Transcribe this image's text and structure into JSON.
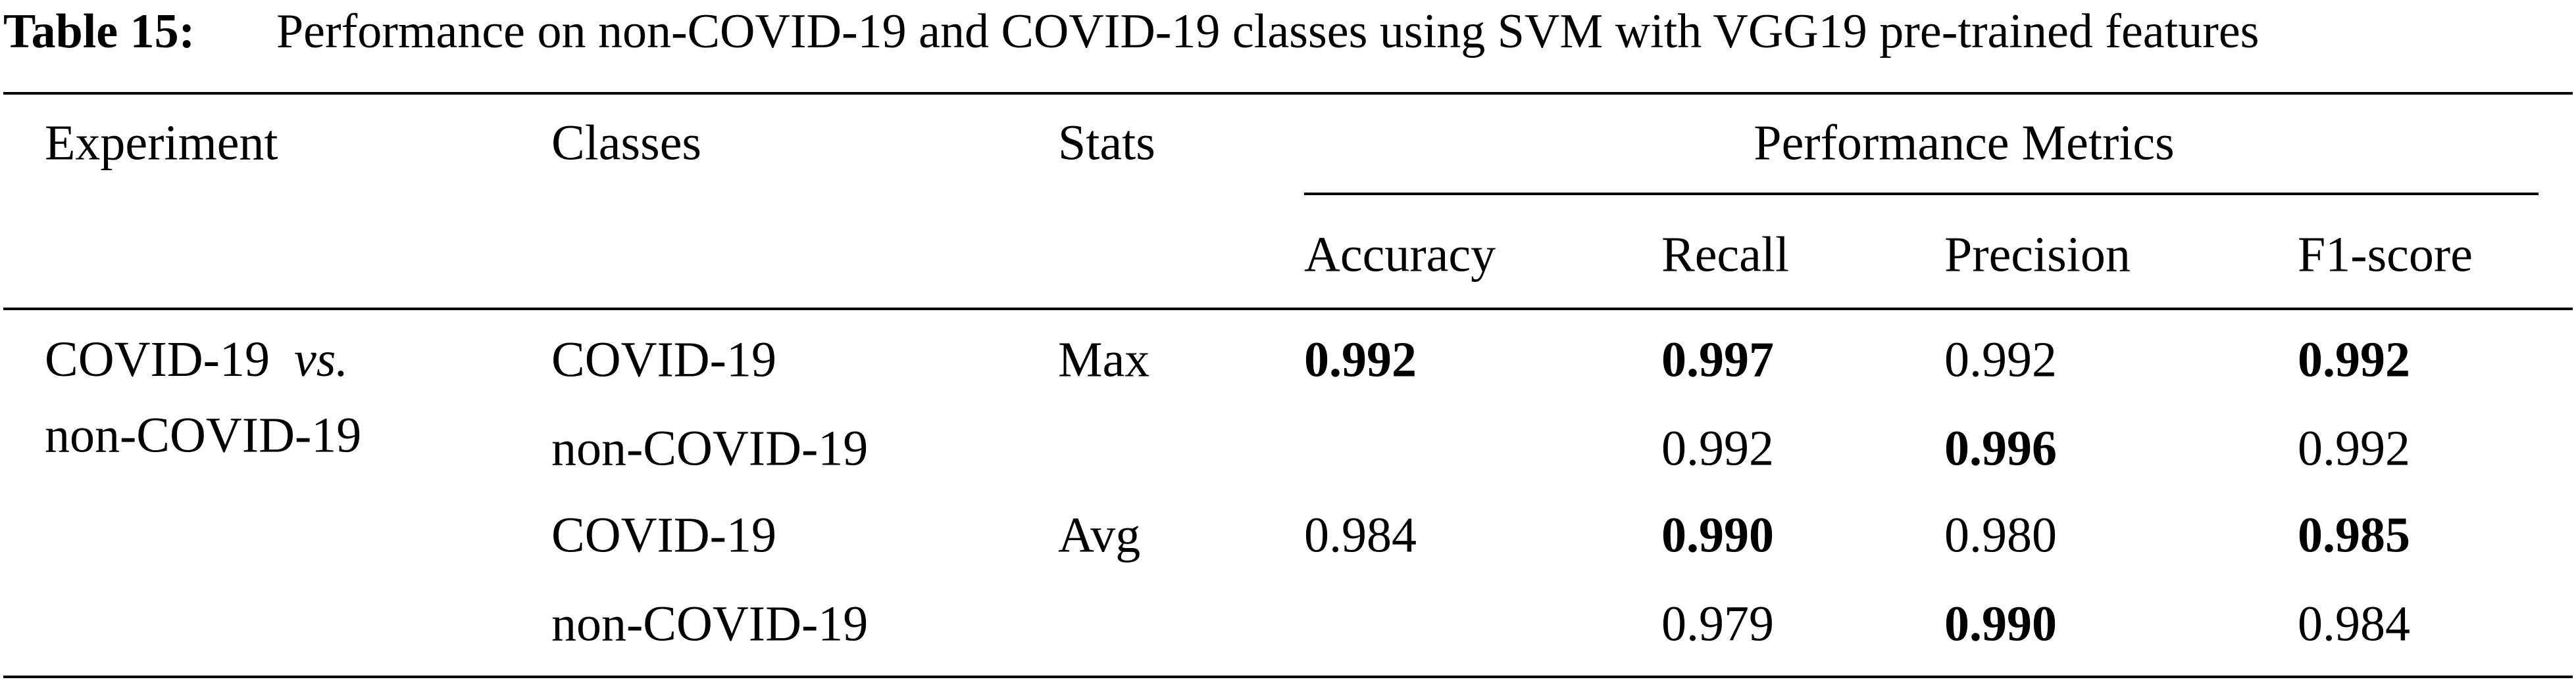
{
  "caption": {
    "label": "Table 15:",
    "text": "Performance on non-COVID-19 and COVID-19 classes using SVM with VGG19 pre-trained features"
  },
  "table": {
    "header": {
      "experiment": "Experiment",
      "classes": "Classes",
      "stats": "Stats",
      "group": "Performance Metrics",
      "metrics": [
        "Accuracy",
        "Recall",
        "Precision",
        "F1-score"
      ]
    },
    "experiment": [
      "COVID-19",
      "vs.",
      "non-COVID-19"
    ],
    "rows": [
      {
        "class": "COVID-19",
        "stats": "Max",
        "cells": [
          {
            "text": "0.992",
            "bold": true
          },
          {
            "text": "0.997",
            "bold": true
          },
          {
            "text": "0.992",
            "bold": false
          },
          {
            "text": "0.992",
            "bold": true
          }
        ]
      },
      {
        "class": "non-COVID-19",
        "cells": [
          null,
          {
            "text": "0.992",
            "bold": false
          },
          {
            "text": "0.996",
            "bold": true
          },
          {
            "text": "0.992",
            "bold": false
          }
        ]
      },
      {
        "class": "COVID-19",
        "stats": "Avg",
        "cells": [
          {
            "text": "0.984",
            "bold": false
          },
          {
            "text": "0.990",
            "bold": true
          },
          {
            "text": "0.980",
            "bold": false
          },
          {
            "text": "0.985",
            "bold": true
          }
        ]
      },
      {
        "class": "non-COVID-19",
        "cells": [
          null,
          {
            "text": "0.979",
            "bold": false
          },
          {
            "text": "0.990",
            "bold": true
          },
          {
            "text": "0.984",
            "bold": false
          }
        ]
      }
    ]
  }
}
